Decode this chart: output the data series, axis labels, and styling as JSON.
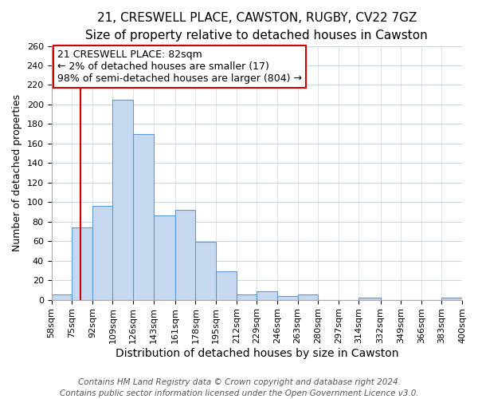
{
  "title": "21, CRESWELL PLACE, CAWSTON, RUGBY, CV22 7GZ",
  "subtitle": "Size of property relative to detached houses in Cawston",
  "xlabel": "Distribution of detached houses by size in Cawston",
  "ylabel": "Number of detached properties",
  "bar_color": "#c6d9f1",
  "bar_edge_color": "#5b9bd5",
  "background_color": "#ffffff",
  "grid_color": "#c8d8e8",
  "bins": [
    58,
    75,
    92,
    109,
    126,
    143,
    161,
    178,
    195,
    212,
    229,
    246,
    263,
    280,
    297,
    314,
    332,
    349,
    366,
    383,
    400
  ],
  "bin_labels": [
    "58sqm",
    "75sqm",
    "92sqm",
    "109sqm",
    "126sqm",
    "143sqm",
    "161sqm",
    "178sqm",
    "195sqm",
    "212sqm",
    "229sqm",
    "246sqm",
    "263sqm",
    "280sqm",
    "297sqm",
    "314sqm",
    "332sqm",
    "349sqm",
    "366sqm",
    "383sqm",
    "400sqm"
  ],
  "values": [
    5,
    74,
    96,
    205,
    170,
    86,
    92,
    59,
    29,
    5,
    9,
    4,
    5,
    0,
    0,
    2,
    0,
    0,
    0,
    2
  ],
  "ylim": [
    0,
    260
  ],
  "yticks": [
    0,
    20,
    40,
    60,
    80,
    100,
    120,
    140,
    160,
    180,
    200,
    220,
    240,
    260
  ],
  "property_line_x": 82,
  "property_line_color": "#cc0000",
  "annotation_title": "21 CRESWELL PLACE: 82sqm",
  "annotation_line1": "← 2% of detached houses are smaller (17)",
  "annotation_line2": "98% of semi-detached houses are larger (804) →",
  "annotation_box_color": "#ffffff",
  "annotation_box_edge": "#cc0000",
  "footer_line1": "Contains HM Land Registry data © Crown copyright and database right 2024.",
  "footer_line2": "Contains public sector information licensed under the Open Government Licence v3.0.",
  "title_fontsize": 11,
  "subtitle_fontsize": 10,
  "ylabel_fontsize": 9,
  "xlabel_fontsize": 10,
  "tick_fontsize": 8,
  "annotation_fontsize": 9,
  "footer_fontsize": 7.5
}
